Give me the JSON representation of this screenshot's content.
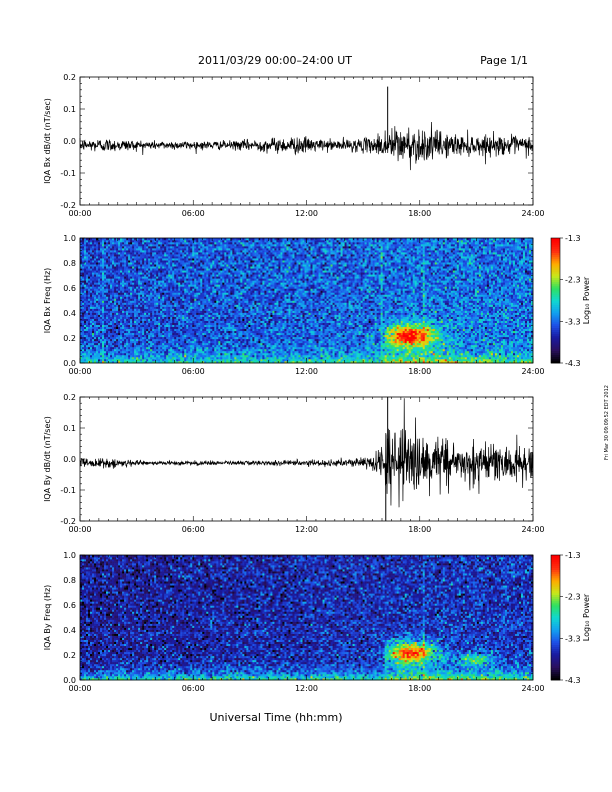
{
  "header": {
    "title": "2011/03/29   00:00–24:00 UT",
    "page": "Page 1/1"
  },
  "side_note": "Fri Mar 30 09:09:52 EDT 2012",
  "colors": {
    "trace": "#000000",
    "axes": "#000000",
    "background": "#ffffff",
    "colormap": [
      "#000000",
      "#2a1060",
      "#1a1aa0",
      "#1e50e8",
      "#12a0f0",
      "#10d8d0",
      "#30e060",
      "#c8e81a",
      "#ffaa00",
      "#ff3010",
      "#ff0000"
    ]
  },
  "chart_data": [
    {
      "type": "line",
      "title": "",
      "ylabel": "IQA Bx dB/dt (nT/sec)",
      "xlabel": "",
      "xlim": [
        0,
        24
      ],
      "ylim": [
        -0.2,
        0.2
      ],
      "xticks": [
        "00:00",
        "06:00",
        "12:00",
        "18:00",
        "24:00"
      ],
      "yticks": [
        "-0.2",
        "-0.1",
        "0.0",
        "0.1",
        "0.2"
      ],
      "ytick_values": [
        -0.2,
        -0.1,
        0.0,
        0.1,
        0.2
      ],
      "series": [
        {
          "values_note_points": [
            [
              0,
              -0.015
            ],
            [
              2,
              -0.015
            ],
            [
              4,
              -0.015
            ],
            [
              6,
              -0.015
            ],
            [
              8,
              -0.013
            ],
            [
              10,
              -0.012
            ],
            [
              11.5,
              -0.01
            ],
            [
              13,
              -0.012
            ],
            [
              15,
              -0.012
            ],
            [
              16.0,
              -0.01
            ],
            [
              16.3,
              0.17
            ],
            [
              17,
              -0.01
            ],
            [
              18,
              -0.01
            ],
            [
              20,
              -0.013
            ],
            [
              22,
              -0.013
            ],
            [
              24,
              -0.013
            ]
          ],
          "amplitude": [
            [
              0,
              0.015
            ],
            [
              1,
              0.02
            ],
            [
              4,
              0.012
            ],
            [
              8,
              0.012
            ],
            [
              11.5,
              0.025
            ],
            [
              13,
              0.015
            ],
            [
              15.5,
              0.02
            ],
            [
              16.0,
              0.04
            ],
            [
              16.5,
              0.055
            ],
            [
              18,
              0.05
            ],
            [
              20,
              0.03
            ],
            [
              24,
              0.025
            ]
          ]
        }
      ]
    },
    {
      "type": "heatmap",
      "title": "",
      "ylabel": "IQA Bx Freq (Hz)",
      "xlabel": "",
      "xlim": [
        0,
        24
      ],
      "ylim": [
        0.0,
        1.0
      ],
      "xticks": [
        "00:00",
        "06:00",
        "12:00",
        "18:00",
        "24:00"
      ],
      "yticks": [
        "0.0",
        "0.2",
        "0.4",
        "0.6",
        "0.8",
        "1.0"
      ],
      "ytick_values": [
        0.0,
        0.2,
        0.4,
        0.6,
        0.8,
        1.0
      ],
      "colorbar": {
        "label": "Log₁₀ Power",
        "min": -4.3,
        "max": -1.3,
        "ticks": [
          "-1.3",
          "-2.3",
          "-3.3",
          "-4.3"
        ],
        "tick_values": [
          -1.3,
          -2.3,
          -3.3,
          -4.3
        ]
      },
      "features": {
        "background_level": 0.28,
        "low_freq_band_level": 0.55,
        "event_center_time": 17.5,
        "event_center_freq": 0.22,
        "event_peak_level": 0.95,
        "vertical_streak_times": [
          1.2,
          16.0,
          18.2
        ]
      }
    },
    {
      "type": "line",
      "title": "",
      "ylabel": "IQA By dB/dt (nT/sec)",
      "xlabel": "",
      "xlim": [
        0,
        24
      ],
      "ylim": [
        -0.2,
        0.2
      ],
      "xticks": [
        "00:00",
        "06:00",
        "12:00",
        "18:00",
        "24:00"
      ],
      "yticks": [
        "-0.2",
        "-0.1",
        "0.0",
        "0.1",
        "0.2"
      ],
      "ytick_values": [
        -0.2,
        -0.1,
        0.0,
        0.1,
        0.2
      ],
      "series": [
        {
          "values_note_points": [
            [
              0,
              -0.005
            ],
            [
              2,
              -0.01
            ],
            [
              6,
              -0.01
            ],
            [
              10,
              -0.01
            ],
            [
              13,
              -0.01
            ],
            [
              15.5,
              -0.008
            ],
            [
              16.2,
              -0.2
            ],
            [
              16.3,
              0.2
            ],
            [
              17,
              -0.005
            ],
            [
              18,
              -0.005
            ],
            [
              20,
              -0.01
            ],
            [
              24,
              -0.01
            ]
          ],
          "amplitude": [
            [
              0,
              0.015
            ],
            [
              1,
              0.015
            ],
            [
              4,
              0.006
            ],
            [
              8,
              0.006
            ],
            [
              11.5,
              0.008
            ],
            [
              14,
              0.01
            ],
            [
              15.5,
              0.02
            ],
            [
              16.0,
              0.06
            ],
            [
              16.4,
              0.12
            ],
            [
              17.5,
              0.09
            ],
            [
              20,
              0.06
            ],
            [
              24,
              0.05
            ]
          ]
        }
      ]
    },
    {
      "type": "heatmap",
      "title": "",
      "ylabel": "IQA By Freq (Hz)",
      "xlabel": "",
      "xlim": [
        0,
        24
      ],
      "ylim": [
        0.0,
        1.0
      ],
      "xticks": [
        "00:00",
        "06:00",
        "12:00",
        "18:00",
        "24:00"
      ],
      "yticks": [
        "0.0",
        "0.2",
        "0.4",
        "0.6",
        "0.8",
        "1.0"
      ],
      "ytick_values": [
        0.0,
        0.2,
        0.4,
        0.6,
        0.8,
        1.0
      ],
      "colorbar": {
        "label": "Log₁₀ Power",
        "min": -4.3,
        "max": -1.3,
        "ticks": [
          "-1.3",
          "-2.3",
          "-3.3",
          "-4.3"
        ],
        "tick_values": [
          -1.3,
          -2.3,
          -3.3,
          -4.3
        ]
      },
      "features": {
        "background_level": 0.18,
        "low_freq_band_level": 0.55,
        "event_center_time": 17.5,
        "event_center_freq": 0.22,
        "event_peak_level": 0.95,
        "vertical_streak_times": [
          18.2
        ],
        "second_blob_time": 21.0
      }
    }
  ],
  "footer": {
    "xlabel": "Universal Time (hh:mm)"
  }
}
